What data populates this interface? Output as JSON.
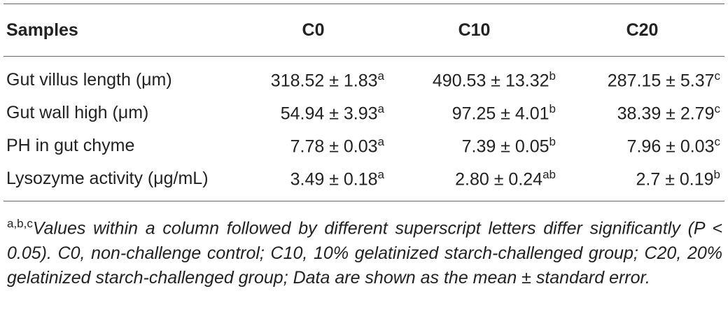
{
  "table": {
    "header": [
      "Samples",
      "C0",
      "C10",
      "C20"
    ],
    "rows": [
      [
        {
          "text": "Gut villus length (μm)"
        },
        {
          "text": "318.52 ± 1.83",
          "sup": "a"
        },
        {
          "text": "490.53 ± 13.32",
          "sup": "b"
        },
        {
          "text": "287.15 ± 5.37",
          "sup": "c"
        }
      ],
      [
        {
          "text": "Gut wall high (μm)"
        },
        {
          "text": "54.94 ± 3.93",
          "sup": "a"
        },
        {
          "text": "97.25 ± 4.01",
          "sup": "b"
        },
        {
          "text": "38.39 ± 2.79",
          "sup": "c"
        }
      ],
      [
        {
          "text": "PH in gut chyme"
        },
        {
          "text": "7.78 ± 0.03",
          "sup": "a"
        },
        {
          "text": "7.39 ± 0.05",
          "sup": "b"
        },
        {
          "text": "7.96 ± 0.03",
          "sup": "c"
        }
      ],
      [
        {
          "text": "Lysozyme activity (μg/mL)"
        },
        {
          "text": "3.49 ± 0.18",
          "sup": "a"
        },
        {
          "text": "2.80 ± 0.24",
          "sup": "ab"
        },
        {
          "text": "2.7 ± 0.19",
          "sup": "b"
        }
      ]
    ]
  },
  "footnote": {
    "sup": "a,b,c",
    "text": "Values within a column followed by different superscript letters differ significantly (P < 0.05). C0, non-challenge control; C10, 10% gelatinized starch-challenged group; C20, 20% gelatinized starch-challenged group; Data are shown as the mean ± standard error."
  }
}
